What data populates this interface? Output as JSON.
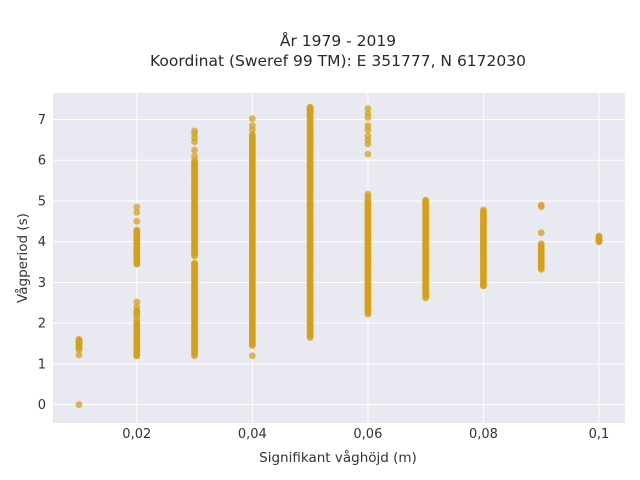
{
  "chart_data": {
    "type": "scatter",
    "title_line1": "År 1979 - 2019",
    "title_line2": "Koordinat (Sweref 99 TM): E 351777, N 6172030",
    "xlabel": "Signifikant våghöjd (m)",
    "ylabel": "Vågperiod (s)",
    "xlim": [
      0.0055,
      0.1045
    ],
    "ylim": [
      -0.45,
      7.65
    ],
    "xticks": [
      0.02,
      0.04,
      0.06,
      0.08,
      0.1
    ],
    "xtick_labels": [
      "0,02",
      "0,04",
      "0,06",
      "0,08",
      "0,1"
    ],
    "yticks": [
      0,
      1,
      2,
      3,
      4,
      5,
      6,
      7
    ],
    "ytick_labels": [
      "0",
      "1",
      "2",
      "3",
      "4",
      "5",
      "6",
      "7"
    ],
    "grid": true,
    "legend": "none",
    "marker_color": "#d4a017",
    "plot_bg": "#e9e9f2",
    "columns": [
      {
        "x": 0.01,
        "ranges": [
          [
            1.35,
            1.62
          ]
        ],
        "points": [
          1.22,
          1.45,
          1.5,
          1.55,
          1.6,
          0.0
        ]
      },
      {
        "x": 0.02,
        "ranges": [
          [
            1.2,
            2.05
          ],
          [
            2.2,
            2.32
          ],
          [
            3.45,
            4.3
          ]
        ],
        "points": [
          1.2,
          1.95,
          2.12,
          2.28,
          2.4,
          2.52,
          3.45,
          3.55,
          3.7,
          3.85,
          4.1,
          4.25,
          4.5,
          4.72,
          4.85
        ]
      },
      {
        "x": 0.03,
        "ranges": [
          [
            1.2,
            3.5
          ],
          [
            3.65,
            6.0
          ]
        ],
        "points": [
          3.1,
          3.25,
          3.35,
          3.45,
          6.1,
          6.25,
          6.45,
          6.55,
          6.65,
          6.72
        ]
      },
      {
        "x": 0.04,
        "ranges": [
          [
            1.45,
            6.65
          ]
        ],
        "points": [
          1.2,
          1.5,
          6.75,
          6.85,
          7.02
        ]
      },
      {
        "x": 0.05,
        "ranges": [
          [
            1.65,
            7.3
          ]
        ],
        "points": [
          7.25,
          7.3
        ]
      },
      {
        "x": 0.06,
        "ranges": [
          [
            2.22,
            5.05
          ]
        ],
        "points": [
          5.1,
          5.17,
          6.15,
          6.4,
          6.5,
          6.6,
          6.75,
          6.85,
          7.05,
          7.15,
          7.27
        ]
      },
      {
        "x": 0.07,
        "ranges": [
          [
            2.62,
            5.0
          ]
        ],
        "points": [
          5.02
        ]
      },
      {
        "x": 0.08,
        "ranges": [
          [
            2.92,
            4.75
          ]
        ],
        "points": [
          2.92,
          4.78
        ]
      },
      {
        "x": 0.09,
        "ranges": [
          [
            3.32,
            3.98
          ]
        ],
        "points": [
          4.22,
          4.86,
          4.9
        ]
      },
      {
        "x": 0.1,
        "ranges": [
          [
            4.0,
            4.15
          ]
        ],
        "points": [
          4.0,
          4.12
        ]
      }
    ]
  }
}
